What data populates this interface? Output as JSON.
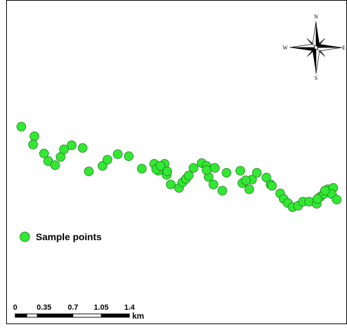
{
  "colors": {
    "point_fill": "#33e833",
    "point_stroke": "#1f7a1f",
    "frame": "#000000",
    "background": "#ffffff"
  },
  "compass": {
    "north": "N",
    "south": "S",
    "east": "E",
    "west": "W",
    "icon": "north-arrow-compass-rose"
  },
  "legend": {
    "label": "Sample points",
    "symbol": "green-circle"
  },
  "scale_bar": {
    "ticks": [
      "0",
      "0.35",
      "0.7",
      "1.05",
      "1.4"
    ],
    "unit": "km"
  },
  "sample_points_count": 62
}
